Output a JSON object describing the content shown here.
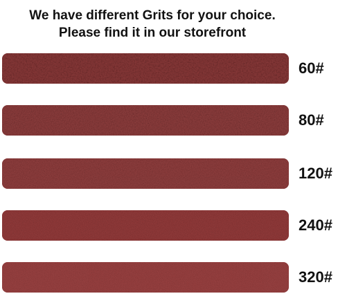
{
  "header": {
    "line1": "We have different Grits for your choice.",
    "line2": "Please find it in our storefront"
  },
  "strips": [
    {
      "label": "60#",
      "color": "#8a3a3a",
      "grain": 1.0
    },
    {
      "label": "80#",
      "color": "#913f3f",
      "grain": 0.8
    },
    {
      "label": "120#",
      "color": "#954141",
      "grain": 0.6
    },
    {
      "label": "240#",
      "color": "#9a3e3e",
      "grain": 0.3
    },
    {
      "label": "320#",
      "color": "#a24545",
      "grain": 0.15
    }
  ]
}
